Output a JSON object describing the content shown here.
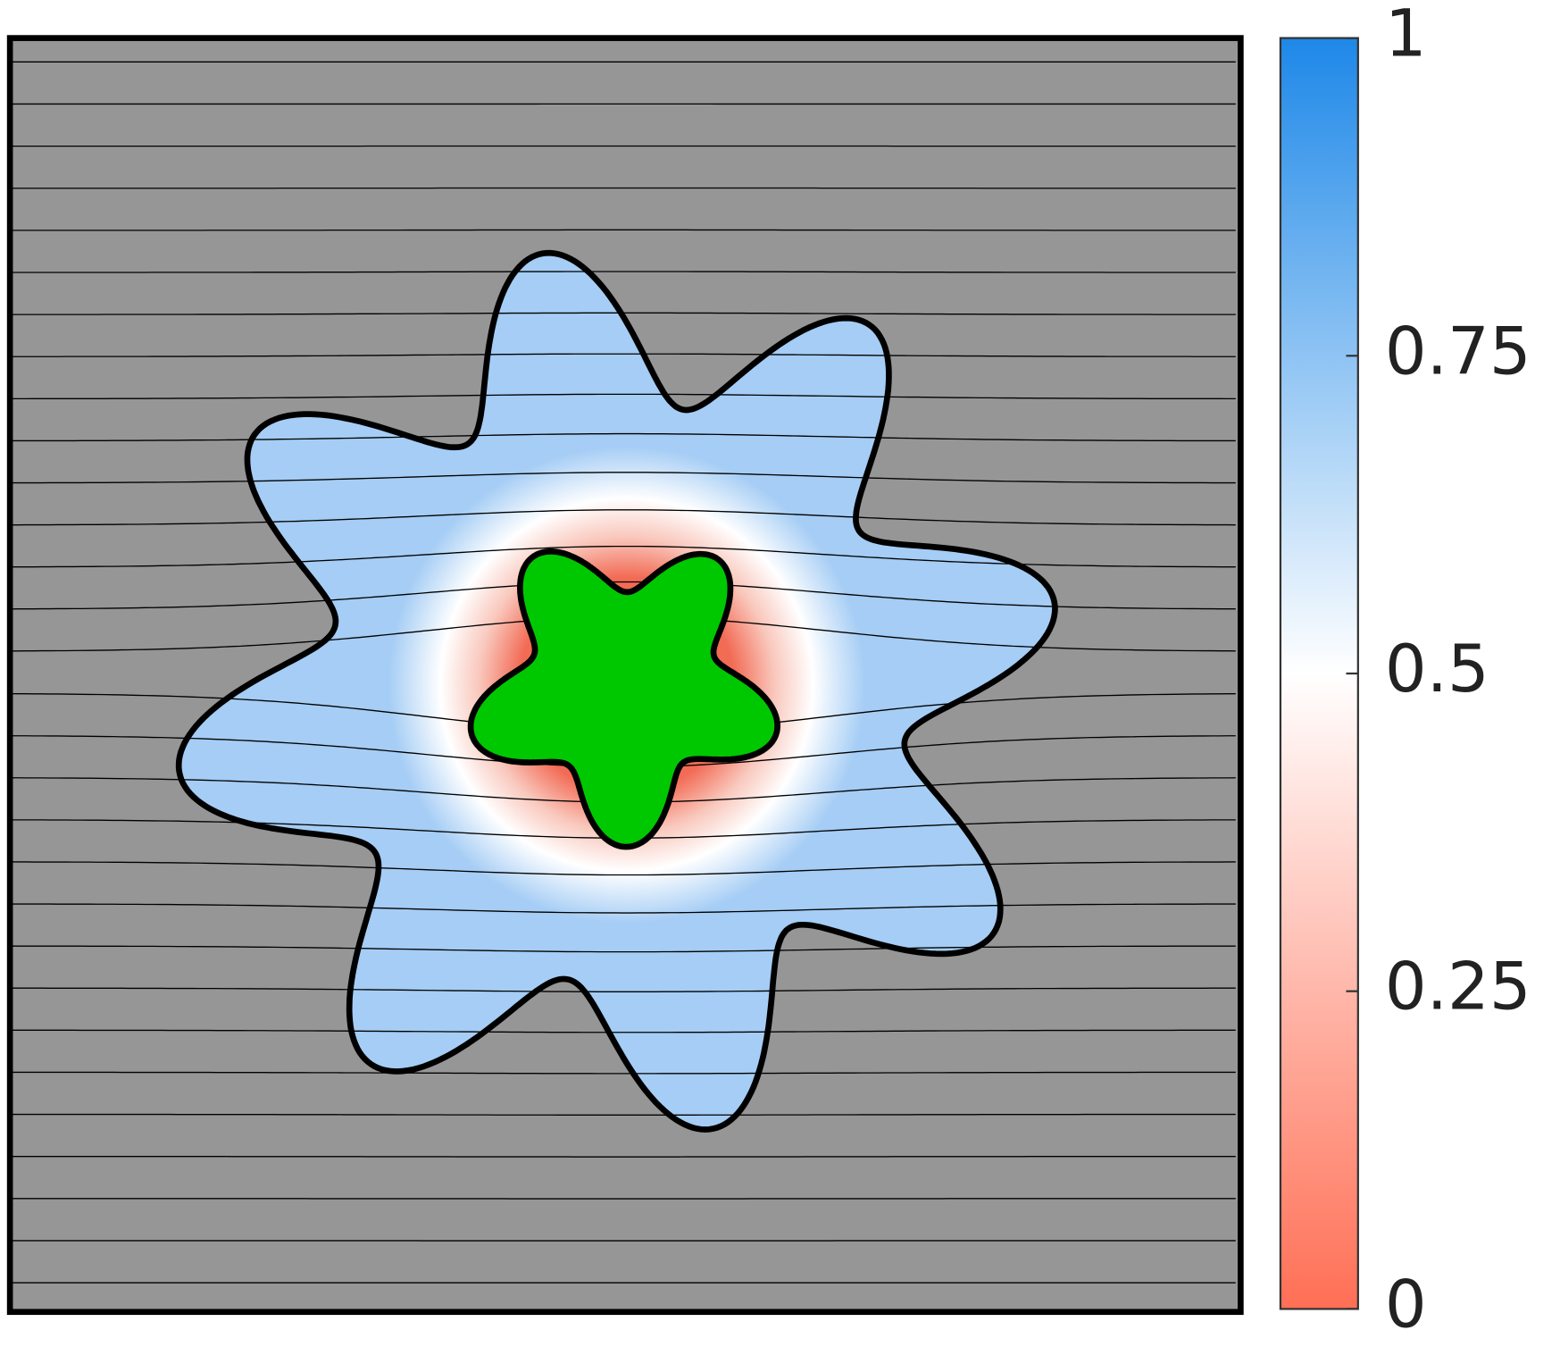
{
  "chart_data": {
    "type": "field",
    "clim": [
      0,
      1
    ],
    "cticks": [
      0,
      0.25,
      0.5,
      0.75,
      1
    ],
    "colormap": [
      "#ff6f55",
      "#ffffff",
      "#1e88e8"
    ],
    "background_color": "#969696",
    "outer_color": "#a5cdf5",
    "inner_color": "#00c800"
  }
}
